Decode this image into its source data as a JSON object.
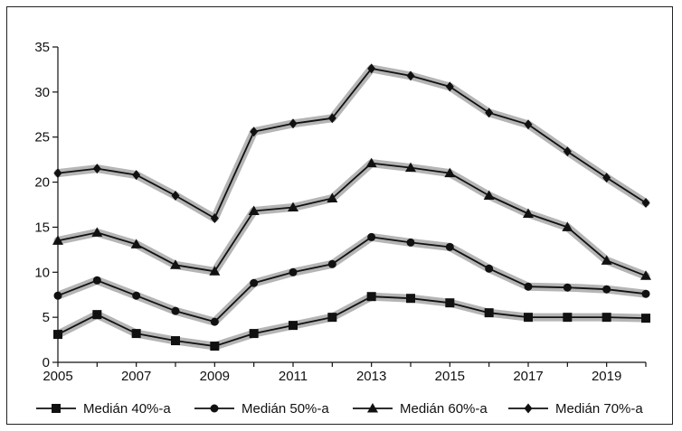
{
  "chart_data": {
    "type": "line",
    "title": "",
    "xlabel": "",
    "ylabel": "",
    "x": [
      2005,
      2006,
      2007,
      2008,
      2009,
      2010,
      2011,
      2012,
      2013,
      2014,
      2015,
      2016,
      2017,
      2018,
      2019,
      2020
    ],
    "xlim": [
      2005,
      2020
    ],
    "ylim": [
      0,
      35
    ],
    "x_ticks": [
      "2005",
      "2007",
      "2009",
      "2011",
      "2013",
      "2015",
      "2017",
      "2019"
    ],
    "y_ticks": [
      "0",
      "5",
      "10",
      "15",
      "20",
      "25",
      "30",
      "35"
    ],
    "grid": false,
    "legend_position": "bottom",
    "series": [
      {
        "name": "Medián 40%-a",
        "marker": "square",
        "values": [
          3.1,
          5.3,
          3.2,
          2.4,
          1.8,
          3.2,
          4.1,
          5.0,
          7.3,
          7.1,
          6.6,
          5.5,
          5.0,
          5.0,
          5.0,
          4.9
        ]
      },
      {
        "name": "Medián 50%-a",
        "marker": "circle",
        "values": [
          7.4,
          9.1,
          7.4,
          5.7,
          4.5,
          8.8,
          10.0,
          10.9,
          13.9,
          13.3,
          12.8,
          10.4,
          8.4,
          8.3,
          8.1,
          7.6
        ]
      },
      {
        "name": "Medián 60%-a",
        "marker": "triangle",
        "values": [
          13.5,
          14.4,
          13.1,
          10.8,
          10.1,
          16.8,
          17.2,
          18.2,
          22.1,
          21.6,
          21.0,
          18.5,
          16.5,
          15.0,
          11.3,
          9.6
        ]
      },
      {
        "name": "Medián 70%-a",
        "marker": "diamond",
        "values": [
          21.0,
          21.5,
          20.8,
          18.5,
          16.0,
          25.6,
          26.5,
          27.1,
          32.6,
          31.8,
          30.6,
          27.7,
          26.4,
          23.4,
          20.5,
          17.7
        ]
      }
    ],
    "colors": {
      "line": "#111111",
      "band": "#b5b5b5"
    }
  }
}
